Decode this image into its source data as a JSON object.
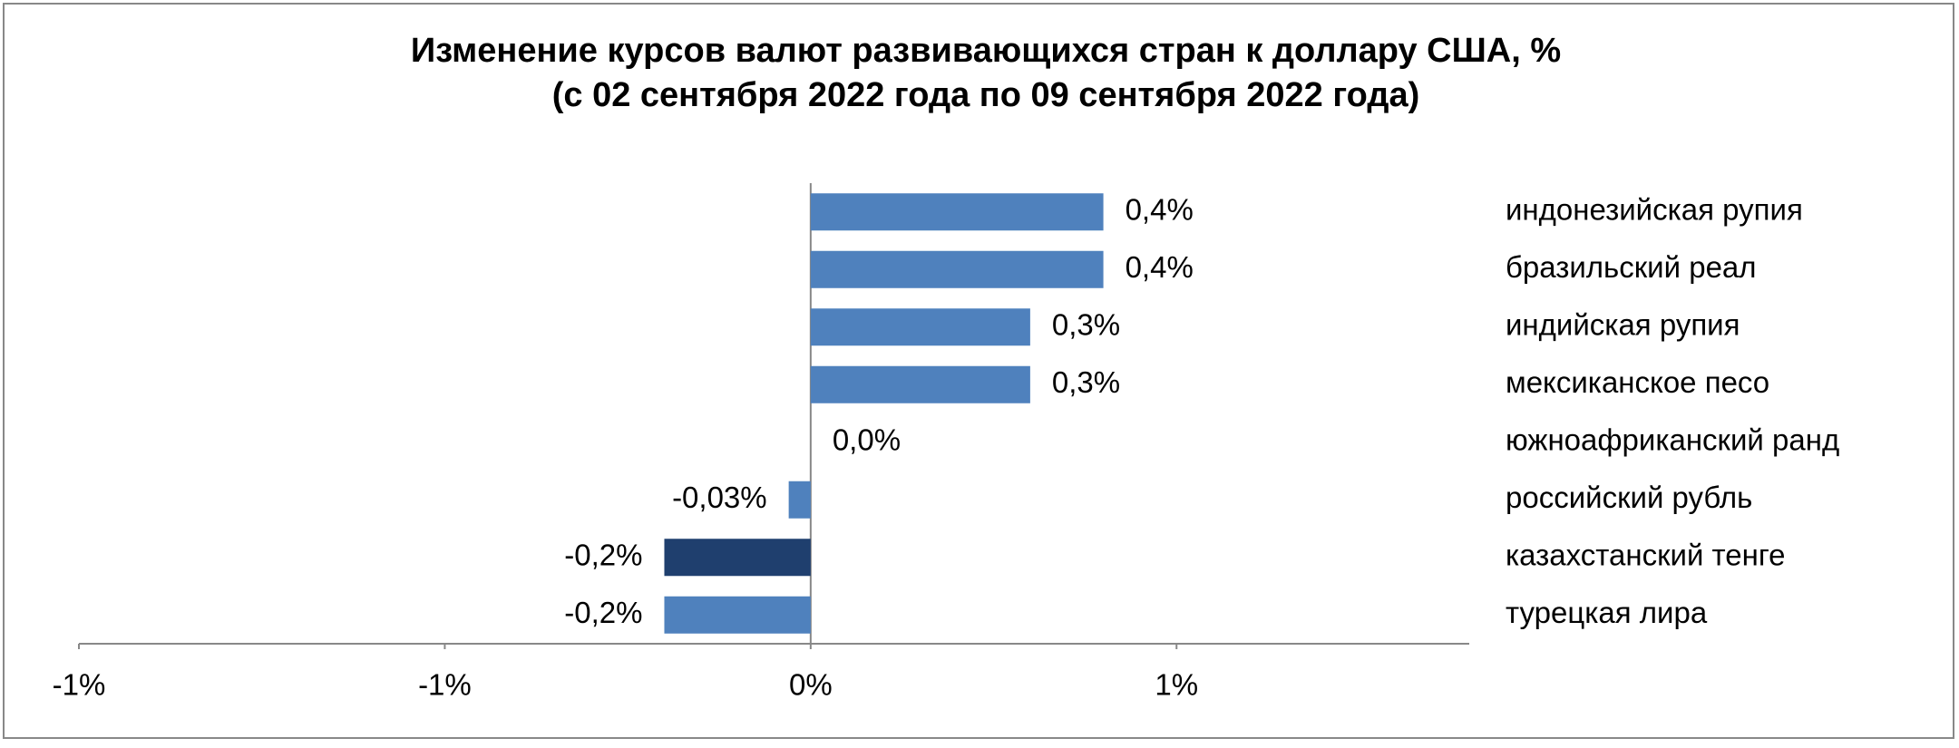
{
  "chart_data": {
    "type": "hbar",
    "title": "Изменение курсов валют развивающихся стран к доллару США, %",
    "subtitle": "(с 02 сентября 2022 года по 09 сентября 2022 года)",
    "categories": [
      "индонезийская рупия",
      "бразильский реал",
      "индийская рупия",
      "мексиканское песо",
      "южноафриканский ранд",
      "российский рубль",
      "казахстанский тенге",
      "турецкая лира"
    ],
    "values": [
      0.4,
      0.4,
      0.3,
      0.3,
      0.0,
      -0.03,
      -0.2,
      -0.2
    ],
    "value_labels": [
      "0,4%",
      "0,4%",
      "0,3%",
      "0,3%",
      "0,0%",
      "-0,03%",
      "-0,2%",
      "-0,2%"
    ],
    "colors": [
      "#4f81bd",
      "#4f81bd",
      "#4f81bd",
      "#4f81bd",
      "#4f81bd",
      "#4f81bd",
      "#1f3f6e",
      "#4f81bd"
    ],
    "xlim": [
      -1,
      0.9
    ],
    "xticks": [
      {
        "value": -1,
        "label": "-1%"
      },
      {
        "value": -0.5,
        "label": "-1%"
      },
      {
        "value": 0,
        "label": "0%"
      },
      {
        "value": 0.5,
        "label": "1%"
      }
    ]
  }
}
